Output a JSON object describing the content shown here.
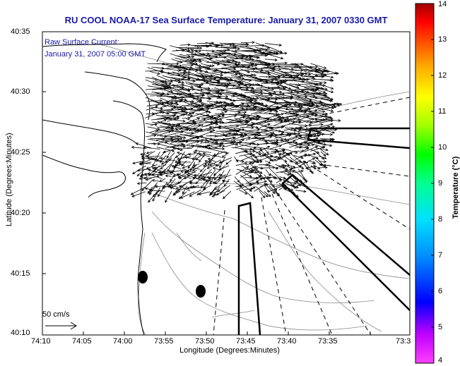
{
  "title": "RU COOL  NOAA-17  Sea Surface Temperature:  January 31, 2007 0330 GMT",
  "current_label": {
    "line1": "Raw Surface Current:",
    "line2": "January 31, 2007 05:00 GMT"
  },
  "scale_label": "50 cm/s",
  "axes": {
    "x_label": "Longitude (Degrees:Minutes)",
    "y_label": "Latitude (Degrees:Minutes)",
    "x_ticks": [
      "74:10",
      "74:05",
      "74:00",
      "73:55",
      "73:50",
      "73:45",
      "73:40",
      "73:35",
      "73:3"
    ],
    "y_ticks": [
      "40:35",
      "40:30",
      "40:25",
      "40:20",
      "40:15",
      "40:10"
    ]
  },
  "colorbar": {
    "label": "Temperature (°C)",
    "ticks": [
      "14",
      "13",
      "12",
      "11",
      "10",
      "9",
      "8",
      "7",
      "6",
      "5",
      "4"
    ],
    "range": [
      4,
      14
    ],
    "colors": [
      "#ff40ff",
      "#c000ff",
      "#0000ff",
      "#0090ff",
      "#00e0ff",
      "#00ff90",
      "#00ff00",
      "#a0ff00",
      "#ffff00",
      "#ffb000",
      "#ff6000",
      "#ff0000",
      "#a00000"
    ]
  },
  "map_colors": {
    "coast": "#000000",
    "contour": "#888888",
    "vectors": "#000000",
    "title_text": "#1a1aa6"
  }
}
